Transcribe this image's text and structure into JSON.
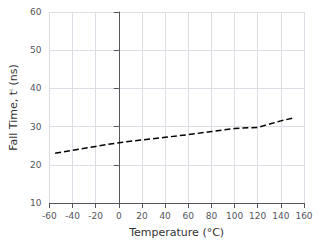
{
  "chart_data": {
    "type": "line",
    "xlabel": "Temperature (°C)",
    "ylabel": "Fall Time, tⁱ (ns)",
    "x": [
      -55,
      -40,
      -20,
      0,
      20,
      40,
      60,
      80,
      100,
      120,
      125,
      140,
      150
    ],
    "values": [
      23.0,
      23.8,
      24.8,
      25.8,
      26.5,
      27.2,
      27.9,
      28.7,
      29.5,
      29.8,
      30.2,
      31.5,
      32.2
    ],
    "color": "#000000",
    "line_style": "dashed",
    "xlim": [
      -60,
      160
    ],
    "ylim": [
      10,
      60
    ],
    "xticks": [
      -60,
      -40,
      -20,
      0,
      20,
      40,
      60,
      80,
      100,
      120,
      140,
      160
    ],
    "yticks": [
      10,
      20,
      30,
      40,
      50,
      60
    ],
    "grid": true
  }
}
